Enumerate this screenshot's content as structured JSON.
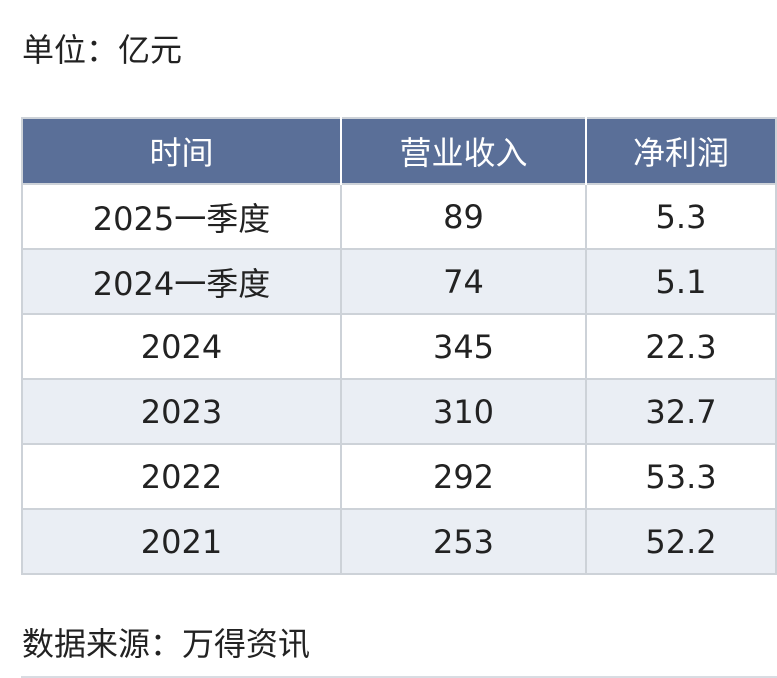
{
  "unit_label": "单位：亿元",
  "table": {
    "headers": [
      "时间",
      "营业收入",
      "净利润"
    ],
    "rows": [
      [
        "2025一季度",
        "89",
        "5.3"
      ],
      [
        "2024一季度",
        "74",
        "5.1"
      ],
      [
        "2024",
        "345",
        "22.3"
      ],
      [
        "2023",
        "310",
        "32.7"
      ],
      [
        "2022",
        "292",
        "53.3"
      ],
      [
        "2021",
        "253",
        "52.2"
      ]
    ]
  },
  "source_label": "数据来源：万得资讯",
  "colors": {
    "header_bg": "#5a6f98",
    "header_text": "#ffffff",
    "stripe_bg": "#eaeef4",
    "border": "#cdd2d8"
  }
}
